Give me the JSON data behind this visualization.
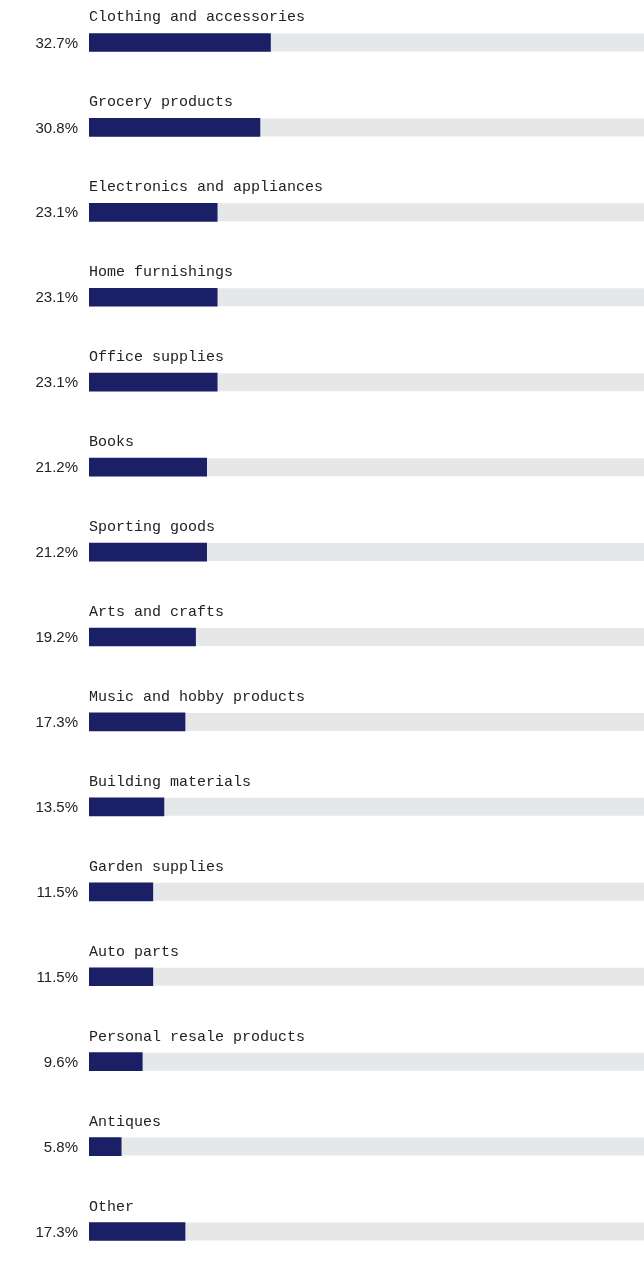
{
  "chart_data": {
    "type": "bar",
    "orientation": "horizontal",
    "categories": [
      "Clothing and accessories",
      "Grocery products",
      "Electronics and appliances",
      "Home furnishings",
      "Office supplies",
      "Books",
      "Sporting goods",
      "Arts and crafts",
      "Music and hobby products",
      "Building materials",
      "Garden supplies",
      "Auto parts",
      "Personal resale products",
      "Antiques",
      "Other"
    ],
    "values": [
      32.7,
      30.8,
      23.1,
      23.1,
      23.1,
      21.2,
      21.2,
      19.2,
      17.3,
      13.5,
      11.5,
      11.5,
      9.6,
      5.8,
      17.3
    ],
    "value_labels": [
      "32.7%",
      "30.8%",
      "23.1%",
      "23.1%",
      "23.1%",
      "21.2%",
      "21.2%",
      "19.2%",
      "17.3%",
      "13.5%",
      "11.5%",
      "11.5%",
      "9.6%",
      "5.8%",
      "17.3%"
    ],
    "color": "#1b2066",
    "xlim": [
      0,
      100
    ],
    "grid": false,
    "legend": false,
    "tick_labels": false
  }
}
